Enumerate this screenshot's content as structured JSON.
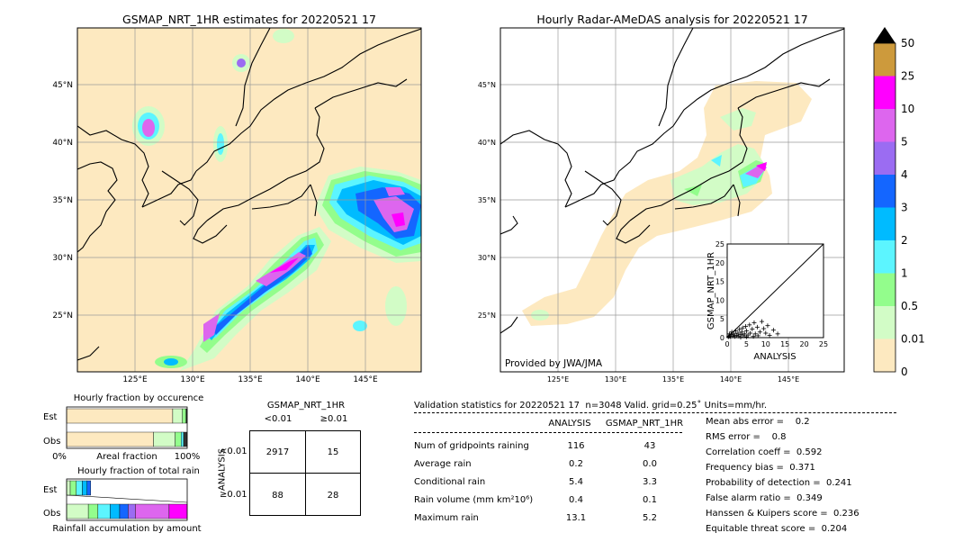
{
  "left_map": {
    "title": "GSMAP_NRT_1HR estimates for 20220521 17",
    "lat_labels": [
      "45°N",
      "40°N",
      "35°N",
      "30°N",
      "25°N"
    ],
    "lon_labels": [
      "125°E",
      "130°E",
      "135°E",
      "140°E",
      "145°E"
    ]
  },
  "right_map": {
    "title": "Hourly Radar-AMeDAS analysis for 20220521 17",
    "lat_labels": [
      "45°N",
      "40°N",
      "35°N",
      "30°N",
      "25°N"
    ],
    "lon_labels": [
      "125°E",
      "130°E",
      "135°E",
      "140°E",
      "145°E"
    ],
    "credit": "Provided by JWA/JMA"
  },
  "colorbar": {
    "labels": [
      "50",
      "25",
      "10",
      "5",
      "4",
      "3",
      "2",
      "1",
      "0.5",
      "0.01",
      "0"
    ],
    "colors": [
      "#cd9a3c",
      "#ff00ff",
      "#dd66ee",
      "#9b6cf2",
      "#1466ff",
      "#00bbff",
      "#5cf5ff",
      "#93fd8c",
      "#d2fcc6",
      "#fde9c0"
    ]
  },
  "chart_data": [
    {
      "type": "scatter",
      "title": "",
      "xlabel": "ANALYSIS",
      "ylabel": "GSMAP_NRT_1HR",
      "xlim": [
        0,
        25
      ],
      "ylim": [
        0,
        25
      ],
      "ticks": [
        "0",
        "5",
        "10",
        "15",
        "20",
        "25"
      ],
      "diagonal": true,
      "points": [
        [
          0.3,
          0.2
        ],
        [
          0.5,
          0.4
        ],
        [
          0.6,
          1.0
        ],
        [
          0.8,
          0.3
        ],
        [
          1.0,
          0.8
        ],
        [
          1.2,
          1.5
        ],
        [
          1.5,
          0.5
        ],
        [
          1.8,
          1.0
        ],
        [
          2.0,
          0.3
        ],
        [
          2.2,
          1.8
        ],
        [
          2.5,
          0.6
        ],
        [
          2.8,
          1.2
        ],
        [
          3.0,
          0.4
        ],
        [
          3.2,
          2.2
        ],
        [
          3.5,
          0.8
        ],
        [
          3.8,
          1.5
        ],
        [
          4.0,
          2.6
        ],
        [
          4.2,
          0.5
        ],
        [
          4.5,
          1.0
        ],
        [
          4.8,
          3.0
        ],
        [
          5.0,
          1.8
        ],
        [
          5.4,
          0.7
        ],
        [
          5.8,
          3.4
        ],
        [
          6.0,
          1.2
        ],
        [
          6.5,
          2.3
        ],
        [
          7.0,
          4.0
        ],
        [
          7.3,
          1.0
        ],
        [
          7.8,
          2.8
        ],
        [
          8.0,
          0.5
        ],
        [
          8.5,
          1.5
        ],
        [
          9.0,
          4.3
        ],
        [
          9.5,
          2.4
        ],
        [
          10.0,
          1.2
        ],
        [
          10.5,
          3.2
        ],
        [
          11.0,
          0.6
        ],
        [
          12.0,
          2.0
        ],
        [
          13.1,
          1.0
        ],
        [
          3.5,
          0.1
        ],
        [
          5.0,
          0.2
        ],
        [
          6.8,
          0.3
        ]
      ]
    },
    {
      "type": "bar",
      "title": "Hourly fraction by occurence",
      "categories": [
        "Est",
        "Obs"
      ],
      "xlabel": "Areal fraction",
      "xticks": [
        "0%",
        "100%"
      ],
      "segments": {
        "Est": [
          {
            "value": 0.88,
            "color": "#fde9c0"
          },
          {
            "value": 0.08,
            "color": "#d2fcc6"
          },
          {
            "value": 0.03,
            "color": "#93fd8c"
          },
          {
            "value": 0.01,
            "color": "#333333"
          }
        ],
        "Obs": [
          {
            "value": 0.72,
            "color": "#fde9c0"
          },
          {
            "value": 0.18,
            "color": "#d2fcc6"
          },
          {
            "value": 0.05,
            "color": "#93fd8c"
          },
          {
            "value": 0.02,
            "color": "#5cf5ff"
          },
          {
            "value": 0.03,
            "color": "#333333"
          }
        ]
      }
    },
    {
      "type": "bar",
      "title": "Hourly fraction of total rain",
      "categories": [
        "Est",
        "Obs"
      ],
      "xlabel": "Rainfall accumulation by amount",
      "segments": {
        "Est": [
          {
            "value": 0.03,
            "color": "#d2fcc6"
          },
          {
            "value": 0.05,
            "color": "#93fd8c"
          },
          {
            "value": 0.05,
            "color": "#5cf5ff"
          },
          {
            "value": 0.04,
            "color": "#00bbff"
          },
          {
            "value": 0.03,
            "color": "#1466ff"
          }
        ],
        "Obs": [
          {
            "value": 0.18,
            "color": "#d2fcc6"
          },
          {
            "value": 0.08,
            "color": "#93fd8c"
          },
          {
            "value": 0.1,
            "color": "#5cf5ff"
          },
          {
            "value": 0.08,
            "color": "#00bbff"
          },
          {
            "value": 0.07,
            "color": "#1466ff"
          },
          {
            "value": 0.06,
            "color": "#9b6cf2"
          },
          {
            "value": 0.28,
            "color": "#dd66ee"
          },
          {
            "value": 0.15,
            "color": "#ff00ff"
          }
        ]
      }
    }
  ],
  "contingency": {
    "header": "GSMAP_NRT_1HR",
    "col_labels": [
      "<0.01",
      "≥0.01"
    ],
    "row_axis": "ANALYSIS",
    "row_labels": [
      "<0.01",
      "≥0.01"
    ],
    "cells": [
      [
        "2917",
        "15"
      ],
      [
        "88",
        "28"
      ]
    ]
  },
  "validation": {
    "header": "Validation statistics for 20220521 17  n=3048 Valid. grid=0.25˚ Units=mm/hr.",
    "col_analysis": "ANALYSIS",
    "col_gsmap": "GSMAP_NRT_1HR",
    "rows": [
      {
        "label": "Num of gridpoints raining",
        "analysis": "116",
        "gsmap": "43"
      },
      {
        "label": "Average rain",
        "analysis": "0.2",
        "gsmap": "0.0"
      },
      {
        "label": "Conditional rain",
        "analysis": "5.4",
        "gsmap": "3.3"
      },
      {
        "label": "Rain volume (mm km²10⁶)",
        "analysis": "0.4",
        "gsmap": "0.1"
      },
      {
        "label": "Maximum rain",
        "analysis": "13.1",
        "gsmap": "5.2"
      }
    ],
    "scores": [
      "Mean abs error =    0.2",
      "RMS error =    0.8",
      "Correlation coeff =  0.592",
      "Frequency bias =  0.371",
      "Probability of detection =  0.241",
      "False alarm ratio =  0.349",
      "Hanssen & Kuipers score =  0.236",
      "Equitable threat score =  0.204"
    ]
  }
}
